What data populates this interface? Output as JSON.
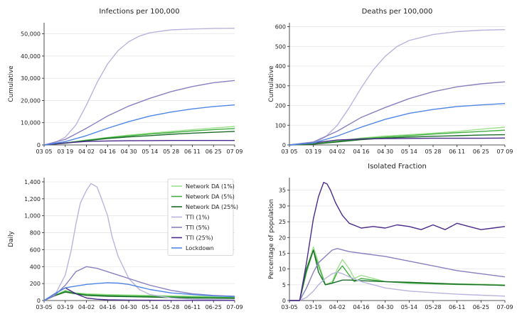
{
  "legend": [
    {
      "name": "Network DA (1%)",
      "color": "#9fe08f"
    },
    {
      "name": "Network DA (5%)",
      "color": "#3fae3f"
    },
    {
      "name": "Network DA (25%)",
      "color": "#1b6b2a"
    },
    {
      "name": "TTI (1%)",
      "color": "#b9b4dd"
    },
    {
      "name": "TTI (5%)",
      "color": "#8a7fc0"
    },
    {
      "name": "TTI (25%)",
      "color": "#4a2a8a"
    },
    {
      "name": "Lockdown",
      "color": "#4f86e6"
    }
  ],
  "chart_data": [
    {
      "type": "line",
      "title": "Infections per 100,000",
      "xlabel": "",
      "ylabel": "Cumulative",
      "x_ticks": [
        "03 05",
        "03 19",
        "04 02",
        "04 16",
        "04 30",
        "05 14",
        "05 28",
        "06 11",
        "06 25",
        "07 09"
      ],
      "x_range": [
        0,
        126
      ],
      "y_range": [
        0,
        55000
      ],
      "y_ticks": [
        0,
        10000,
        20000,
        30000,
        40000,
        50000
      ],
      "y_tick_labels": [
        "0",
        "10,000",
        "20,000",
        "30,000",
        "40,000",
        "50,000"
      ],
      "grid": true,
      "series": [
        {
          "name": "Network DA (1%)",
          "color": "#9fe08f",
          "x": [
            0,
            14,
            28,
            42,
            56,
            70,
            84,
            98,
            112,
            126
          ],
          "values": [
            0,
            900,
            2200,
            3400,
            4400,
            5300,
            6100,
            6900,
            7600,
            8300
          ]
        },
        {
          "name": "Network DA (5%)",
          "color": "#3fae3f",
          "x": [
            0,
            14,
            28,
            42,
            56,
            70,
            84,
            98,
            112,
            126
          ],
          "values": [
            0,
            900,
            2100,
            3200,
            4100,
            4900,
            5600,
            6300,
            6900,
            7400
          ]
        },
        {
          "name": "Network DA (25%)",
          "color": "#1b6b2a",
          "x": [
            0,
            14,
            28,
            42,
            56,
            70,
            84,
            98,
            112,
            126
          ],
          "values": [
            0,
            800,
            1900,
            2900,
            3600,
            4200,
            4800,
            5300,
            5700,
            6100
          ]
        },
        {
          "name": "TTI (1%)",
          "color": "#b9b4dd",
          "x": [
            0,
            7,
            14,
            21,
            28,
            35,
            42,
            49,
            56,
            63,
            70,
            84,
            98,
            112,
            126
          ],
          "values": [
            0,
            1000,
            3500,
            9000,
            18000,
            28000,
            36500,
            42500,
            46500,
            49000,
            50500,
            51800,
            52200,
            52400,
            52500
          ]
        },
        {
          "name": "TTI (5%)",
          "color": "#8a7fc0",
          "x": [
            0,
            14,
            28,
            42,
            56,
            70,
            84,
            98,
            112,
            126
          ],
          "values": [
            0,
            2500,
            7500,
            13000,
            17500,
            21000,
            24000,
            26300,
            28000,
            29000
          ]
        },
        {
          "name": "TTI (25%)",
          "color": "#4a2a8a",
          "x": [
            0,
            14,
            28,
            42,
            56,
            70,
            84,
            98,
            112,
            126
          ],
          "values": [
            0,
            900,
            1600,
            1800,
            1900,
            1950,
            2000,
            2000,
            2000,
            2000
          ]
        },
        {
          "name": "Lockdown",
          "color": "#4f86e6",
          "x": [
            0,
            14,
            28,
            42,
            56,
            70,
            84,
            98,
            112,
            126
          ],
          "values": [
            0,
            1500,
            4200,
            7500,
            10500,
            13000,
            14800,
            16200,
            17300,
            18000
          ]
        }
      ]
    },
    {
      "type": "line",
      "title": "Deaths per 100,000",
      "xlabel": "",
      "ylabel": "Cumulative",
      "x_ticks": [
        "03 05",
        "03 19",
        "04 02",
        "04 16",
        "04 30",
        "05 14",
        "05 28",
        "06 11",
        "06 25",
        "07 09"
      ],
      "x_range": [
        0,
        126
      ],
      "y_range": [
        0,
        620
      ],
      "y_ticks": [
        0,
        100,
        200,
        300,
        400,
        500,
        600
      ],
      "y_tick_labels": [
        "0",
        "100",
        "200",
        "300",
        "400",
        "500",
        "600"
      ],
      "grid": true,
      "series": [
        {
          "name": "Network DA (1%)",
          "color": "#9fe08f",
          "x": [
            0,
            14,
            28,
            42,
            56,
            70,
            84,
            98,
            112,
            126
          ],
          "values": [
            0,
            5,
            20,
            35,
            45,
            52,
            60,
            68,
            80,
            90
          ]
        },
        {
          "name": "Network DA (5%)",
          "color": "#3fae3f",
          "x": [
            0,
            14,
            28,
            42,
            56,
            70,
            84,
            98,
            112,
            126
          ],
          "values": [
            0,
            5,
            18,
            32,
            40,
            47,
            55,
            62,
            68,
            75
          ]
        },
        {
          "name": "Network DA (25%)",
          "color": "#1b6b2a",
          "x": [
            0,
            14,
            28,
            42,
            56,
            70,
            84,
            98,
            112,
            126
          ],
          "values": [
            0,
            4,
            15,
            27,
            35,
            40,
            44,
            47,
            50,
            52
          ]
        },
        {
          "name": "TTI (1%)",
          "color": "#b9b4dd",
          "x": [
            0,
            14,
            21,
            28,
            35,
            42,
            49,
            56,
            63,
            70,
            84,
            98,
            112,
            126
          ],
          "values": [
            0,
            10,
            40,
            100,
            190,
            290,
            380,
            450,
            500,
            530,
            560,
            575,
            582,
            585
          ]
        },
        {
          "name": "TTI (5%)",
          "color": "#8a7fc0",
          "x": [
            0,
            14,
            28,
            42,
            56,
            70,
            84,
            98,
            112,
            126
          ],
          "values": [
            0,
            15,
            70,
            140,
            190,
            235,
            270,
            295,
            310,
            320
          ]
        },
        {
          "name": "TTI (25%)",
          "color": "#4a2a8a",
          "x": [
            0,
            14,
            28,
            42,
            56,
            70,
            84,
            98,
            112,
            126
          ],
          "values": [
            0,
            10,
            25,
            30,
            32,
            33,
            34,
            34,
            34,
            35
          ]
        },
        {
          "name": "Lockdown",
          "color": "#4f86e6",
          "x": [
            0,
            14,
            28,
            42,
            56,
            70,
            84,
            98,
            112,
            126
          ],
          "values": [
            0,
            10,
            45,
            90,
            130,
            160,
            180,
            195,
            203,
            210
          ]
        }
      ]
    },
    {
      "type": "line",
      "title": "",
      "xlabel": "",
      "ylabel": "Daily",
      "x_ticks": [
        "03-05",
        "03-19",
        "04-02",
        "04-16",
        "04-30",
        "05-14",
        "05-28",
        "06-11",
        "06-25",
        "07-09"
      ],
      "x_range": [
        0,
        126
      ],
      "y_range": [
        0,
        1450
      ],
      "y_ticks": [
        0,
        200,
        400,
        600,
        800,
        1000,
        1200,
        1400
      ],
      "y_tick_labels": [
        "0",
        "200",
        "400",
        "600",
        "800",
        "1,000",
        "1,200",
        "1,400"
      ],
      "grid": true,
      "legend_position": "top-right",
      "series": [
        {
          "name": "Network DA (1%)",
          "color": "#9fe08f",
          "x": [
            0,
            7,
            14,
            21,
            28,
            42,
            56,
            70,
            84,
            98,
            112,
            126
          ],
          "values": [
            0,
            60,
            120,
            90,
            80,
            70,
            65,
            60,
            55,
            50,
            50,
            50
          ]
        },
        {
          "name": "Network DA (5%)",
          "color": "#3fae3f",
          "x": [
            0,
            7,
            14,
            21,
            28,
            42,
            56,
            70,
            84,
            98,
            112,
            126
          ],
          "values": [
            0,
            60,
            110,
            85,
            70,
            60,
            55,
            50,
            45,
            40,
            38,
            35
          ]
        },
        {
          "name": "Network DA (25%)",
          "color": "#1b6b2a",
          "x": [
            0,
            7,
            14,
            21,
            28,
            42,
            56,
            70,
            84,
            98,
            112,
            126
          ],
          "values": [
            0,
            55,
            100,
            80,
            60,
            50,
            45,
            40,
            35,
            30,
            28,
            25
          ]
        },
        {
          "name": "TTI (1%)",
          "color": "#b9b4dd",
          "x": [
            0,
            7,
            14,
            18,
            21,
            24,
            28,
            31,
            35,
            38,
            42,
            45,
            49,
            56,
            63,
            70,
            84,
            98,
            112,
            126
          ],
          "values": [
            0,
            60,
            300,
            600,
            900,
            1150,
            1300,
            1380,
            1340,
            1200,
            1000,
            750,
            520,
            260,
            130,
            70,
            30,
            15,
            10,
            5
          ]
        },
        {
          "name": "TTI (5%)",
          "color": "#8a7fc0",
          "x": [
            0,
            7,
            14,
            21,
            28,
            35,
            42,
            49,
            56,
            63,
            70,
            84,
            98,
            112,
            126
          ],
          "values": [
            0,
            60,
            180,
            340,
            400,
            380,
            340,
            300,
            260,
            220,
            180,
            120,
            80,
            60,
            50
          ]
        },
        {
          "name": "TTI (25%)",
          "color": "#4a2a8a",
          "x": [
            0,
            7,
            14,
            21,
            28,
            35,
            42,
            56,
            70,
            84,
            98,
            112,
            126
          ],
          "values": [
            0,
            80,
            150,
            80,
            30,
            15,
            8,
            5,
            3,
            2,
            2,
            2,
            2
          ]
        },
        {
          "name": "Lockdown",
          "color": "#4f86e6",
          "x": [
            0,
            7,
            14,
            21,
            28,
            35,
            42,
            49,
            56,
            63,
            70,
            84,
            98,
            112,
            126
          ],
          "values": [
            0,
            80,
            150,
            170,
            190,
            200,
            210,
            205,
            190,
            160,
            130,
            90,
            70,
            55,
            45
          ]
        }
      ]
    },
    {
      "type": "line",
      "title": "Isolated Fraction",
      "xlabel": "",
      "ylabel": "Percentage of population",
      "x_ticks": [
        "03-05",
        "03-19",
        "04-02",
        "04-16",
        "04-30",
        "05-14",
        "05-28",
        "06-11",
        "06-25",
        "07-09"
      ],
      "x_range": [
        0,
        126
      ],
      "y_range": [
        0,
        39
      ],
      "y_ticks": [
        0,
        5,
        10,
        15,
        20,
        25,
        30,
        35
      ],
      "y_tick_labels": [
        "0",
        "5",
        "10",
        "15",
        "20",
        "25",
        "30",
        "35"
      ],
      "grid": true,
      "series": [
        {
          "name": "Network DA (1%)",
          "color": "#9fe08f",
          "x": [
            0,
            6,
            10,
            14,
            17,
            21,
            25,
            28,
            31,
            35,
            38,
            42,
            49,
            56,
            70,
            84,
            98,
            112,
            126
          ],
          "values": [
            0,
            0,
            10,
            17,
            12,
            5,
            6,
            10,
            13,
            10,
            7,
            8,
            7,
            6,
            5.8,
            5.5,
            5.3,
            5.2,
            5
          ]
        },
        {
          "name": "Network DA (5%)",
          "color": "#3fae3f",
          "x": [
            0,
            6,
            10,
            14,
            17,
            21,
            25,
            28,
            31,
            35,
            38,
            42,
            49,
            56,
            70,
            84,
            98,
            112,
            126
          ],
          "values": [
            0,
            0,
            9,
            16,
            11,
            5,
            5.5,
            9,
            11,
            8,
            6,
            7,
            6.5,
            6,
            5.5,
            5.3,
            5.1,
            5,
            4.8
          ]
        },
        {
          "name": "Network DA (25%)",
          "color": "#1b6b2a",
          "x": [
            0,
            6,
            10,
            14,
            17,
            21,
            25,
            28,
            31,
            35,
            42,
            56,
            70,
            84,
            98,
            112,
            126
          ],
          "values": [
            0,
            0,
            10,
            16,
            9,
            5,
            5.5,
            6,
            6.5,
            6.5,
            6.3,
            6,
            5.8,
            5.5,
            5.2,
            5,
            4.8
          ]
        },
        {
          "name": "TTI (1%)",
          "color": "#b9b4dd",
          "x": [
            0,
            6,
            10,
            14,
            17,
            21,
            25,
            28,
            31,
            35,
            42,
            49,
            56,
            70,
            84,
            98,
            112,
            126
          ],
          "values": [
            0,
            0,
            1,
            3,
            5,
            7,
            8.5,
            9,
            8.5,
            7.5,
            6,
            5,
            4,
            3,
            2.5,
            2,
            1.7,
            1.4
          ]
        },
        {
          "name": "TTI (5%)",
          "color": "#8a7fc0",
          "x": [
            0,
            6,
            10,
            14,
            17,
            21,
            25,
            28,
            35,
            42,
            56,
            70,
            84,
            98,
            112,
            126
          ],
          "values": [
            0,
            0,
            4,
            9,
            12,
            14,
            16,
            16.5,
            15.5,
            15,
            14,
            12.5,
            11,
            9.5,
            8.5,
            7.5
          ]
        },
        {
          "name": "TTI (25%)",
          "color": "#4a2a8a",
          "x": [
            0,
            6,
            10,
            14,
            17,
            20,
            22,
            24,
            27,
            31,
            35,
            42,
            49,
            56,
            63,
            70,
            77,
            84,
            91,
            98,
            105,
            112,
            119,
            126
          ],
          "values": [
            0,
            0,
            12,
            26,
            33,
            37.5,
            37,
            35,
            31,
            27,
            24.5,
            23,
            23.5,
            23,
            24,
            23.5,
            22.5,
            24,
            22.5,
            24.5,
            23.5,
            22.5,
            23,
            23.5
          ]
        },
        {
          "name": "Lockdown",
          "color": "#4f86e6",
          "x": [],
          "values": []
        }
      ]
    }
  ]
}
